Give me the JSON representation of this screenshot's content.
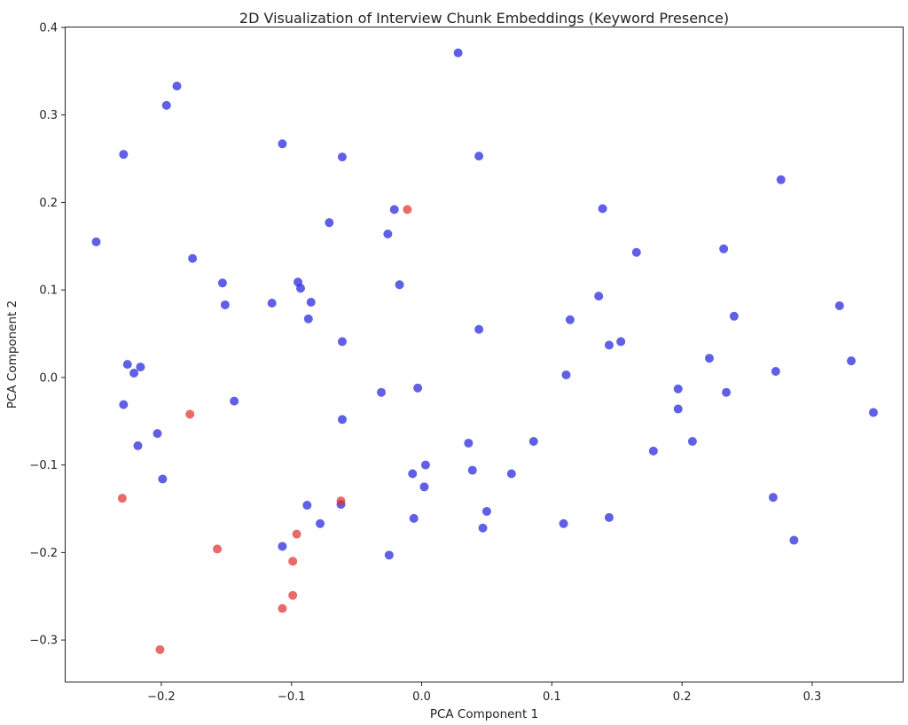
{
  "chart_data": {
    "type": "scatter",
    "title": "2D Visualization of Interview Chunk Embeddings (Keyword Presence)",
    "xlabel": "PCA Component 1",
    "ylabel": "PCA Component 2",
    "xlim": [
      -0.2735,
      0.3695
    ],
    "ylim": [
      -0.3475,
      0.4
    ],
    "xticks": [
      -0.2,
      -0.1,
      0.0,
      0.1,
      0.2,
      0.3
    ],
    "xtick_labels": [
      "−0.2",
      "−0.1",
      "0.0",
      "0.1",
      "0.2",
      "0.3"
    ],
    "yticks": [
      -0.3,
      -0.2,
      -0.1,
      0.0,
      0.1,
      0.2,
      0.3,
      0.4
    ],
    "ytick_labels": [
      "−0.3",
      "−0.2",
      "−0.1",
      "0.0",
      "0.1",
      "0.2",
      "0.3",
      "0.4"
    ],
    "grid": false,
    "legend": "none",
    "series": [
      {
        "color": "#2222dd",
        "points": [
          [
            0.028,
            0.371
          ],
          [
            -0.188,
            0.333
          ],
          [
            -0.196,
            0.311
          ],
          [
            -0.229,
            0.255
          ],
          [
            -0.107,
            0.267
          ],
          [
            -0.061,
            0.252
          ],
          [
            0.044,
            0.253
          ],
          [
            0.276,
            0.226
          ],
          [
            -0.021,
            0.192
          ],
          [
            0.139,
            0.193
          ],
          [
            -0.25,
            0.155
          ],
          [
            -0.071,
            0.177
          ],
          [
            -0.026,
            0.164
          ],
          [
            0.165,
            0.143
          ],
          [
            0.232,
            0.147
          ],
          [
            -0.176,
            0.136
          ],
          [
            -0.153,
            0.108
          ],
          [
            -0.095,
            0.109
          ],
          [
            -0.017,
            0.106
          ],
          [
            -0.093,
            0.102
          ],
          [
            -0.151,
            0.083
          ],
          [
            -0.115,
            0.085
          ],
          [
            -0.085,
            0.086
          ],
          [
            0.136,
            0.093
          ],
          [
            0.321,
            0.082
          ],
          [
            -0.087,
            0.067
          ],
          [
            0.114,
            0.066
          ],
          [
            0.24,
            0.07
          ],
          [
            -0.061,
            0.041
          ],
          [
            0.044,
            0.055
          ],
          [
            0.144,
            0.037
          ],
          [
            0.153,
            0.041
          ],
          [
            0.221,
            0.022
          ],
          [
            0.33,
            0.019
          ],
          [
            -0.226,
            0.015
          ],
          [
            -0.216,
            0.012
          ],
          [
            -0.221,
            0.005
          ],
          [
            0.111,
            0.003
          ],
          [
            0.272,
            0.007
          ],
          [
            -0.229,
            -0.031
          ],
          [
            -0.031,
            -0.017
          ],
          [
            -0.003,
            -0.012
          ],
          [
            0.197,
            -0.013
          ],
          [
            0.234,
            -0.017
          ],
          [
            -0.144,
            -0.027
          ],
          [
            0.197,
            -0.036
          ],
          [
            0.347,
            -0.04
          ],
          [
            -0.061,
            -0.048
          ],
          [
            -0.203,
            -0.064
          ],
          [
            -0.218,
            -0.078
          ],
          [
            0.036,
            -0.075
          ],
          [
            0.086,
            -0.073
          ],
          [
            0.208,
            -0.073
          ],
          [
            0.178,
            -0.084
          ],
          [
            0.003,
            -0.1
          ],
          [
            -0.007,
            -0.11
          ],
          [
            0.039,
            -0.106
          ],
          [
            0.069,
            -0.11
          ],
          [
            -0.199,
            -0.116
          ],
          [
            0.002,
            -0.125
          ],
          [
            0.27,
            -0.137
          ],
          [
            -0.088,
            -0.146
          ],
          [
            -0.062,
            -0.145
          ],
          [
            0.05,
            -0.153
          ],
          [
            -0.006,
            -0.161
          ],
          [
            0.144,
            -0.16
          ],
          [
            -0.078,
            -0.167
          ],
          [
            0.047,
            -0.172
          ],
          [
            0.109,
            -0.167
          ],
          [
            0.286,
            -0.186
          ],
          [
            -0.107,
            -0.193
          ],
          [
            -0.025,
            -0.203
          ]
        ]
      },
      {
        "color": "#e03030",
        "points": [
          [
            -0.011,
            0.192
          ],
          [
            -0.178,
            -0.042
          ],
          [
            -0.23,
            -0.138
          ],
          [
            -0.062,
            -0.141
          ],
          [
            -0.096,
            -0.179
          ],
          [
            -0.157,
            -0.196
          ],
          [
            -0.099,
            -0.21
          ],
          [
            -0.099,
            -0.249
          ],
          [
            -0.107,
            -0.264
          ],
          [
            -0.201,
            -0.311
          ]
        ]
      }
    ]
  }
}
